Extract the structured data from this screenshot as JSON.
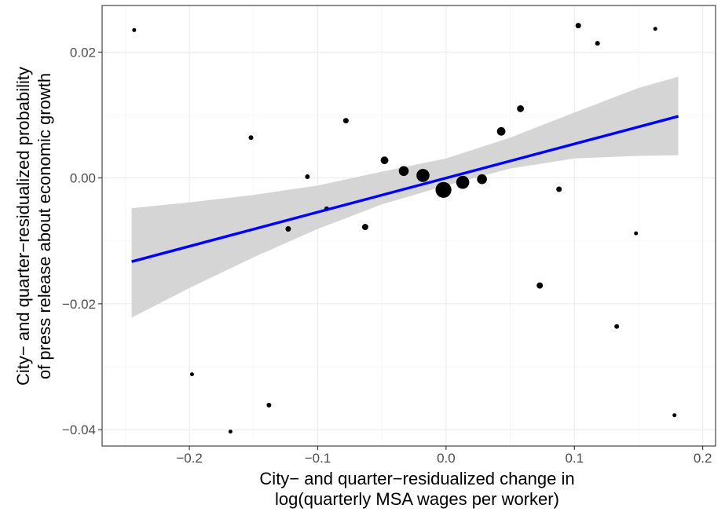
{
  "chart_data": {
    "type": "scatter",
    "title": "",
    "xlabel_lines": [
      "City− and quarter−residualized change in",
      "log(quarterly MSA wages per worker)"
    ],
    "ylabel_lines": [
      "City− and quarter−residualized probability",
      "of press release about economic growth"
    ],
    "xlim": [
      -0.268,
      0.21
    ],
    "ylim": [
      -0.0426,
      0.0274
    ],
    "x_ticks": [
      -0.2,
      -0.1,
      0.0,
      0.1,
      0.2
    ],
    "x_tick_labels": [
      "−0.2",
      "−0.1",
      "0.0",
      "0.1",
      "0.2"
    ],
    "y_ticks": [
      -0.04,
      -0.02,
      0.0,
      0.02
    ],
    "y_tick_labels": [
      "−0.04",
      "−0.02",
      "0.00",
      "0.02"
    ],
    "grid": true,
    "point_color": "#000000",
    "fit_color": "#0000ff",
    "band_color": "#d3d3d3",
    "points": [
      {
        "x": -0.243,
        "y": 0.0235,
        "size": 1
      },
      {
        "x": -0.198,
        "y": -0.0312,
        "size": 1
      },
      {
        "x": -0.168,
        "y": -0.0403,
        "size": 1
      },
      {
        "x": -0.152,
        "y": 0.0064,
        "size": 1.5
      },
      {
        "x": -0.138,
        "y": -0.0361,
        "size": 1.5
      },
      {
        "x": -0.123,
        "y": -0.0081,
        "size": 2
      },
      {
        "x": -0.108,
        "y": 0.0002,
        "size": 1.5
      },
      {
        "x": -0.093,
        "y": -0.0049,
        "size": 1.5
      },
      {
        "x": -0.078,
        "y": 0.0091,
        "size": 2
      },
      {
        "x": -0.063,
        "y": -0.0078,
        "size": 2.5
      },
      {
        "x": -0.048,
        "y": 0.0028,
        "size": 3.5
      },
      {
        "x": -0.033,
        "y": 0.0011,
        "size": 5
      },
      {
        "x": -0.018,
        "y": 0.0004,
        "size": 7
      },
      {
        "x": -0.002,
        "y": -0.0019,
        "size": 9
      },
      {
        "x": 0.013,
        "y": -0.0007,
        "size": 7
      },
      {
        "x": 0.028,
        "y": -0.0002,
        "size": 5
      },
      {
        "x": 0.043,
        "y": 0.0074,
        "size": 4
      },
      {
        "x": 0.058,
        "y": 0.011,
        "size": 3
      },
      {
        "x": 0.073,
        "y": -0.0171,
        "size": 2.5
      },
      {
        "x": 0.088,
        "y": -0.0018,
        "size": 2
      },
      {
        "x": 0.103,
        "y": 0.0242,
        "size": 2
      },
      {
        "x": 0.118,
        "y": 0.0214,
        "size": 1.5
      },
      {
        "x": 0.133,
        "y": -0.0236,
        "size": 1.5
      },
      {
        "x": 0.148,
        "y": -0.0088,
        "size": 1
      },
      {
        "x": 0.163,
        "y": 0.0237,
        "size": 1
      },
      {
        "x": 0.178,
        "y": -0.0377,
        "size": 1
      }
    ],
    "fit": {
      "x": [
        -0.245,
        0.181
      ],
      "y": [
        -0.0133,
        0.0098
      ]
    },
    "confidence_band": {
      "x": [
        -0.245,
        -0.2,
        -0.15,
        -0.1,
        -0.05,
        0.0,
        0.05,
        0.1,
        0.15,
        0.181
      ],
      "lower": [
        -0.0222,
        -0.0175,
        -0.0126,
        -0.0081,
        -0.0042,
        -0.0012,
        0.0015,
        0.0031,
        0.0035,
        0.0036
      ],
      "upper": [
        -0.0048,
        -0.0039,
        -0.0027,
        -0.0012,
        0.001,
        0.0031,
        0.0064,
        0.0104,
        0.0143,
        0.0161
      ]
    }
  }
}
